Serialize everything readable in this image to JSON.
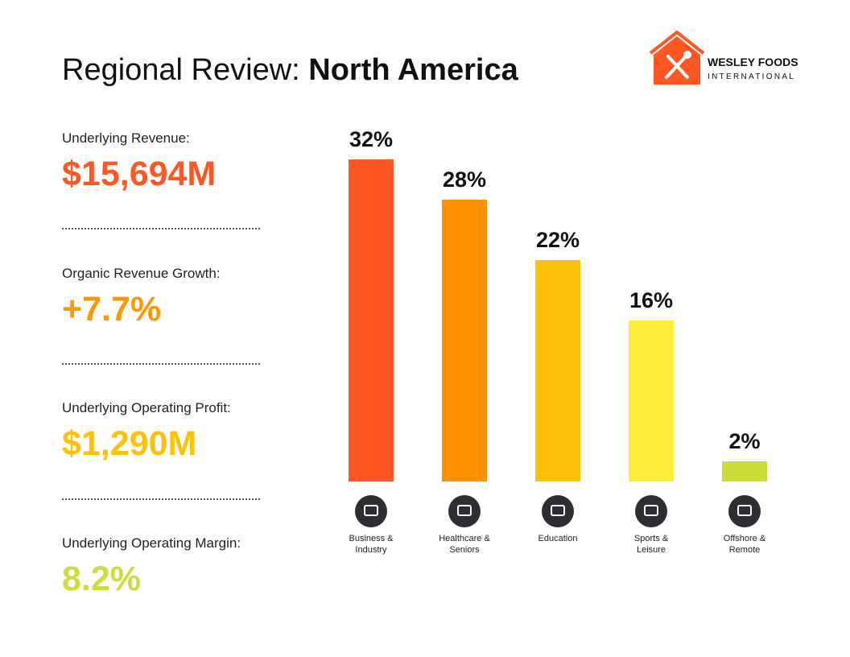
{
  "header": {
    "title": "Regional Review:",
    "title_emphasis": "North America"
  },
  "logo": {
    "name": "WESLEY FOODS",
    "tagline": "INTERNATIONAL"
  },
  "kpis": [
    {
      "label": "Underlying Revenue:",
      "value": "$15,694M",
      "color": "#ff5722"
    },
    {
      "label": "Organic Revenue Growth:",
      "value": "+7.7%",
      "color": "#ff9800"
    },
    {
      "label": "Underlying Operating Profit:",
      "value": "$1,290M",
      "color": "#ffc107"
    },
    {
      "label": "Underlying Operating Margin:",
      "value": "8.2%",
      "color": "#cddc39"
    }
  ],
  "chart_data": {
    "type": "bar",
    "categories": [
      "Business & Industry",
      "Healthcare & Seniors",
      "Education",
      "Sports & Leisure",
      "Offshore & Remote"
    ],
    "values": [
      32,
      28,
      22,
      16,
      2
    ],
    "value_labels": [
      "32%",
      "28%",
      "22%",
      "16%",
      "2%"
    ],
    "colors": [
      "#ff5722",
      "#ff9100",
      "#ffc107",
      "#ffeb3b",
      "#cddc39"
    ]
  }
}
